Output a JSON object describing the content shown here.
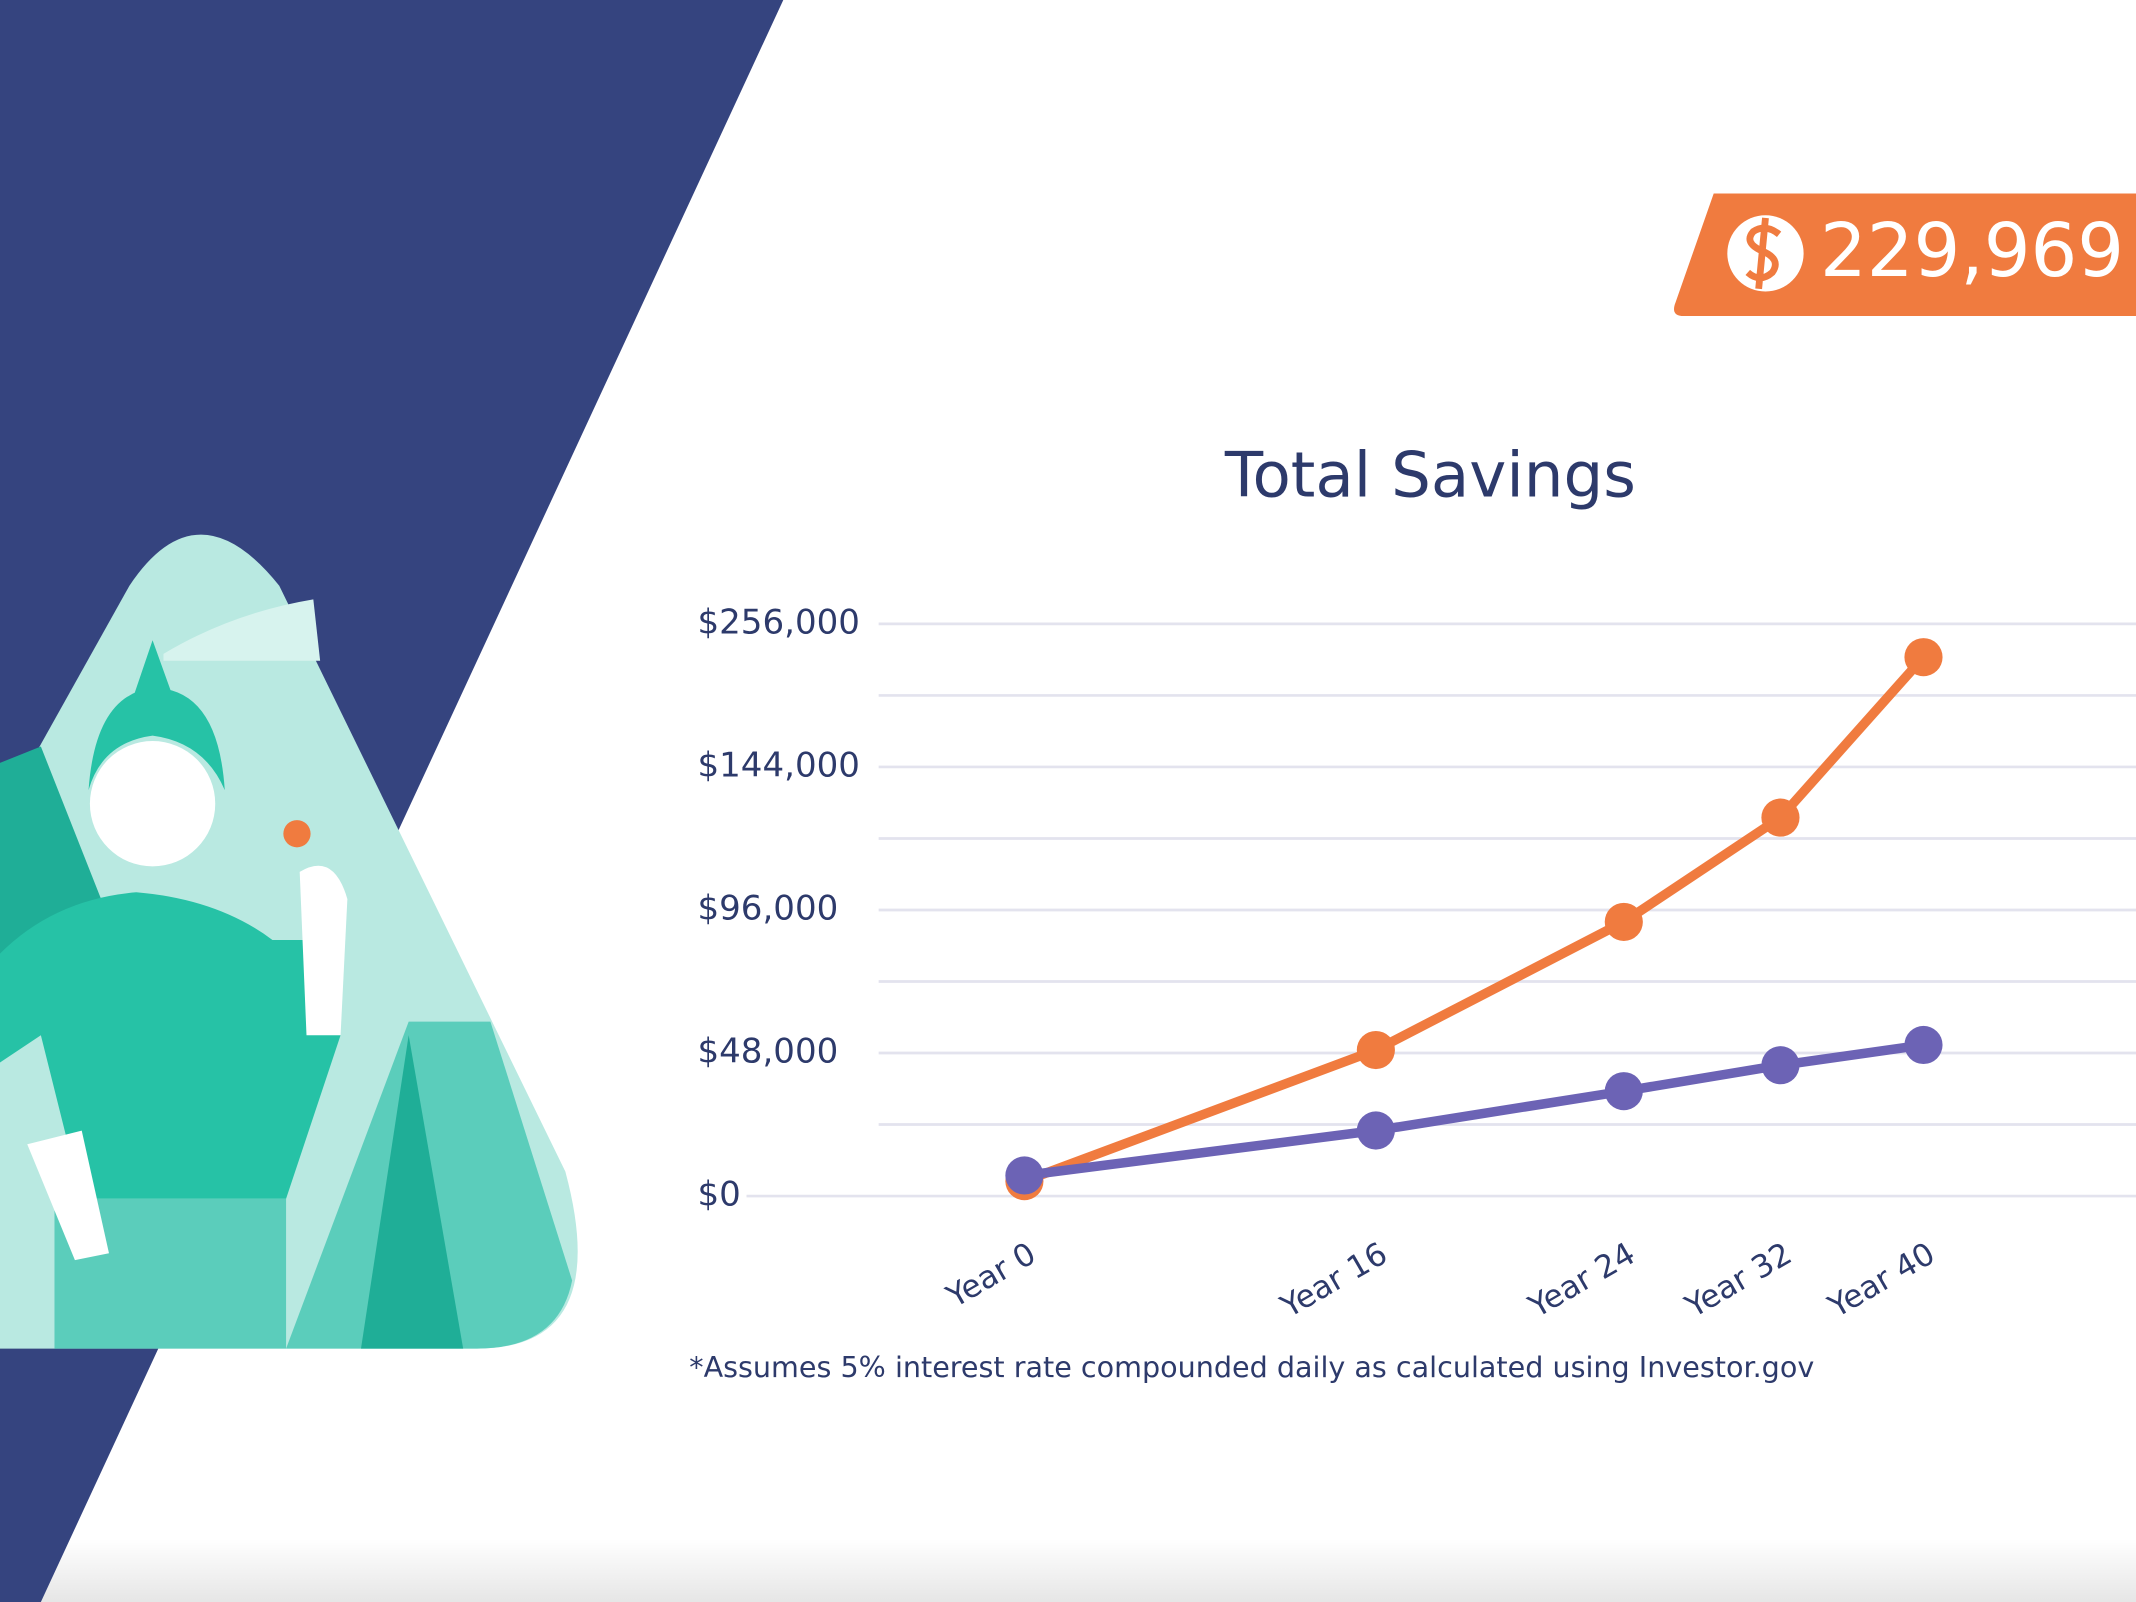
{
  "badge": {
    "amount": "229,969"
  },
  "chart_data": {
    "type": "line",
    "title": "Total Savings",
    "categories": [
      "Year 0",
      "Year 16",
      "Year 24",
      "Year 32",
      "Year 40"
    ],
    "series": [
      {
        "color": "#f07b3f",
        "values": [
          5000,
          49000,
          92000,
          127000,
          229969
        ]
      },
      {
        "color": "#6c63b5",
        "values": [
          6900,
          22000,
          35200,
          43900,
          50700
        ]
      }
    ],
    "ylim": [
      0,
      256000
    ],
    "yticks": [
      {
        "value": 0,
        "label": "$0"
      },
      {
        "value": 48000,
        "label": "$48,000"
      },
      {
        "value": 96000,
        "label": "$96,000"
      },
      {
        "value": 144000,
        "label": "$144,000"
      },
      {
        "value": 256000,
        "label": "$256,000"
      }
    ],
    "grid": true
  },
  "footnote": "*Assumes 5% interest rate compounded daily as calculated using Investor.gov"
}
